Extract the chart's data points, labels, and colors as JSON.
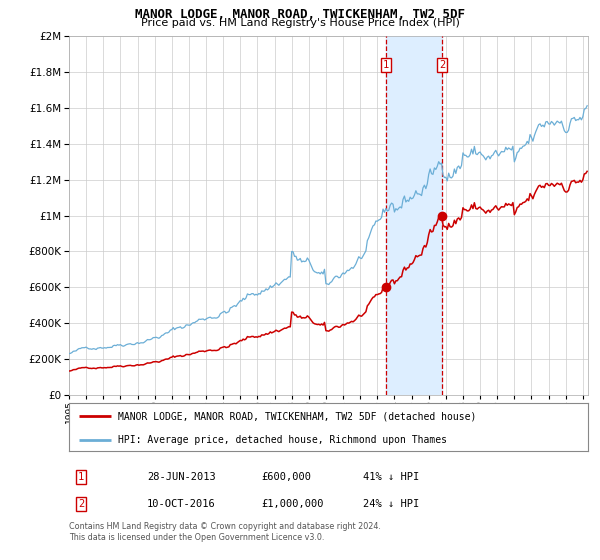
{
  "title": "MANOR LODGE, MANOR ROAD, TWICKENHAM, TW2 5DF",
  "subtitle": "Price paid vs. HM Land Registry's House Price Index (HPI)",
  "legend_line1": "MANOR LODGE, MANOR ROAD, TWICKENHAM, TW2 5DF (detached house)",
  "legend_line2": "HPI: Average price, detached house, Richmond upon Thames",
  "footnote1": "Contains HM Land Registry data © Crown copyright and database right 2024.",
  "footnote2": "This data is licensed under the Open Government Licence v3.0.",
  "table_row1_num": "1",
  "table_row1_date": "28-JUN-2013",
  "table_row1_price": "£600,000",
  "table_row1_hpi": "41% ↓ HPI",
  "table_row2_num": "2",
  "table_row2_date": "10-OCT-2016",
  "table_row2_price": "£1,000,000",
  "table_row2_hpi": "24% ↓ HPI",
  "sale1_date": 2013.49,
  "sale1_price": 600000,
  "sale2_date": 2016.78,
  "sale2_price": 1000000,
  "hpi_color": "#6baed6",
  "price_color": "#cc0000",
  "highlight_color": "#ddeeff",
  "ylim": [
    0,
    2000000
  ],
  "xlim_start": 1995.0,
  "xlim_end": 2025.3,
  "background_color": "#ffffff",
  "grid_color": "#cccccc"
}
